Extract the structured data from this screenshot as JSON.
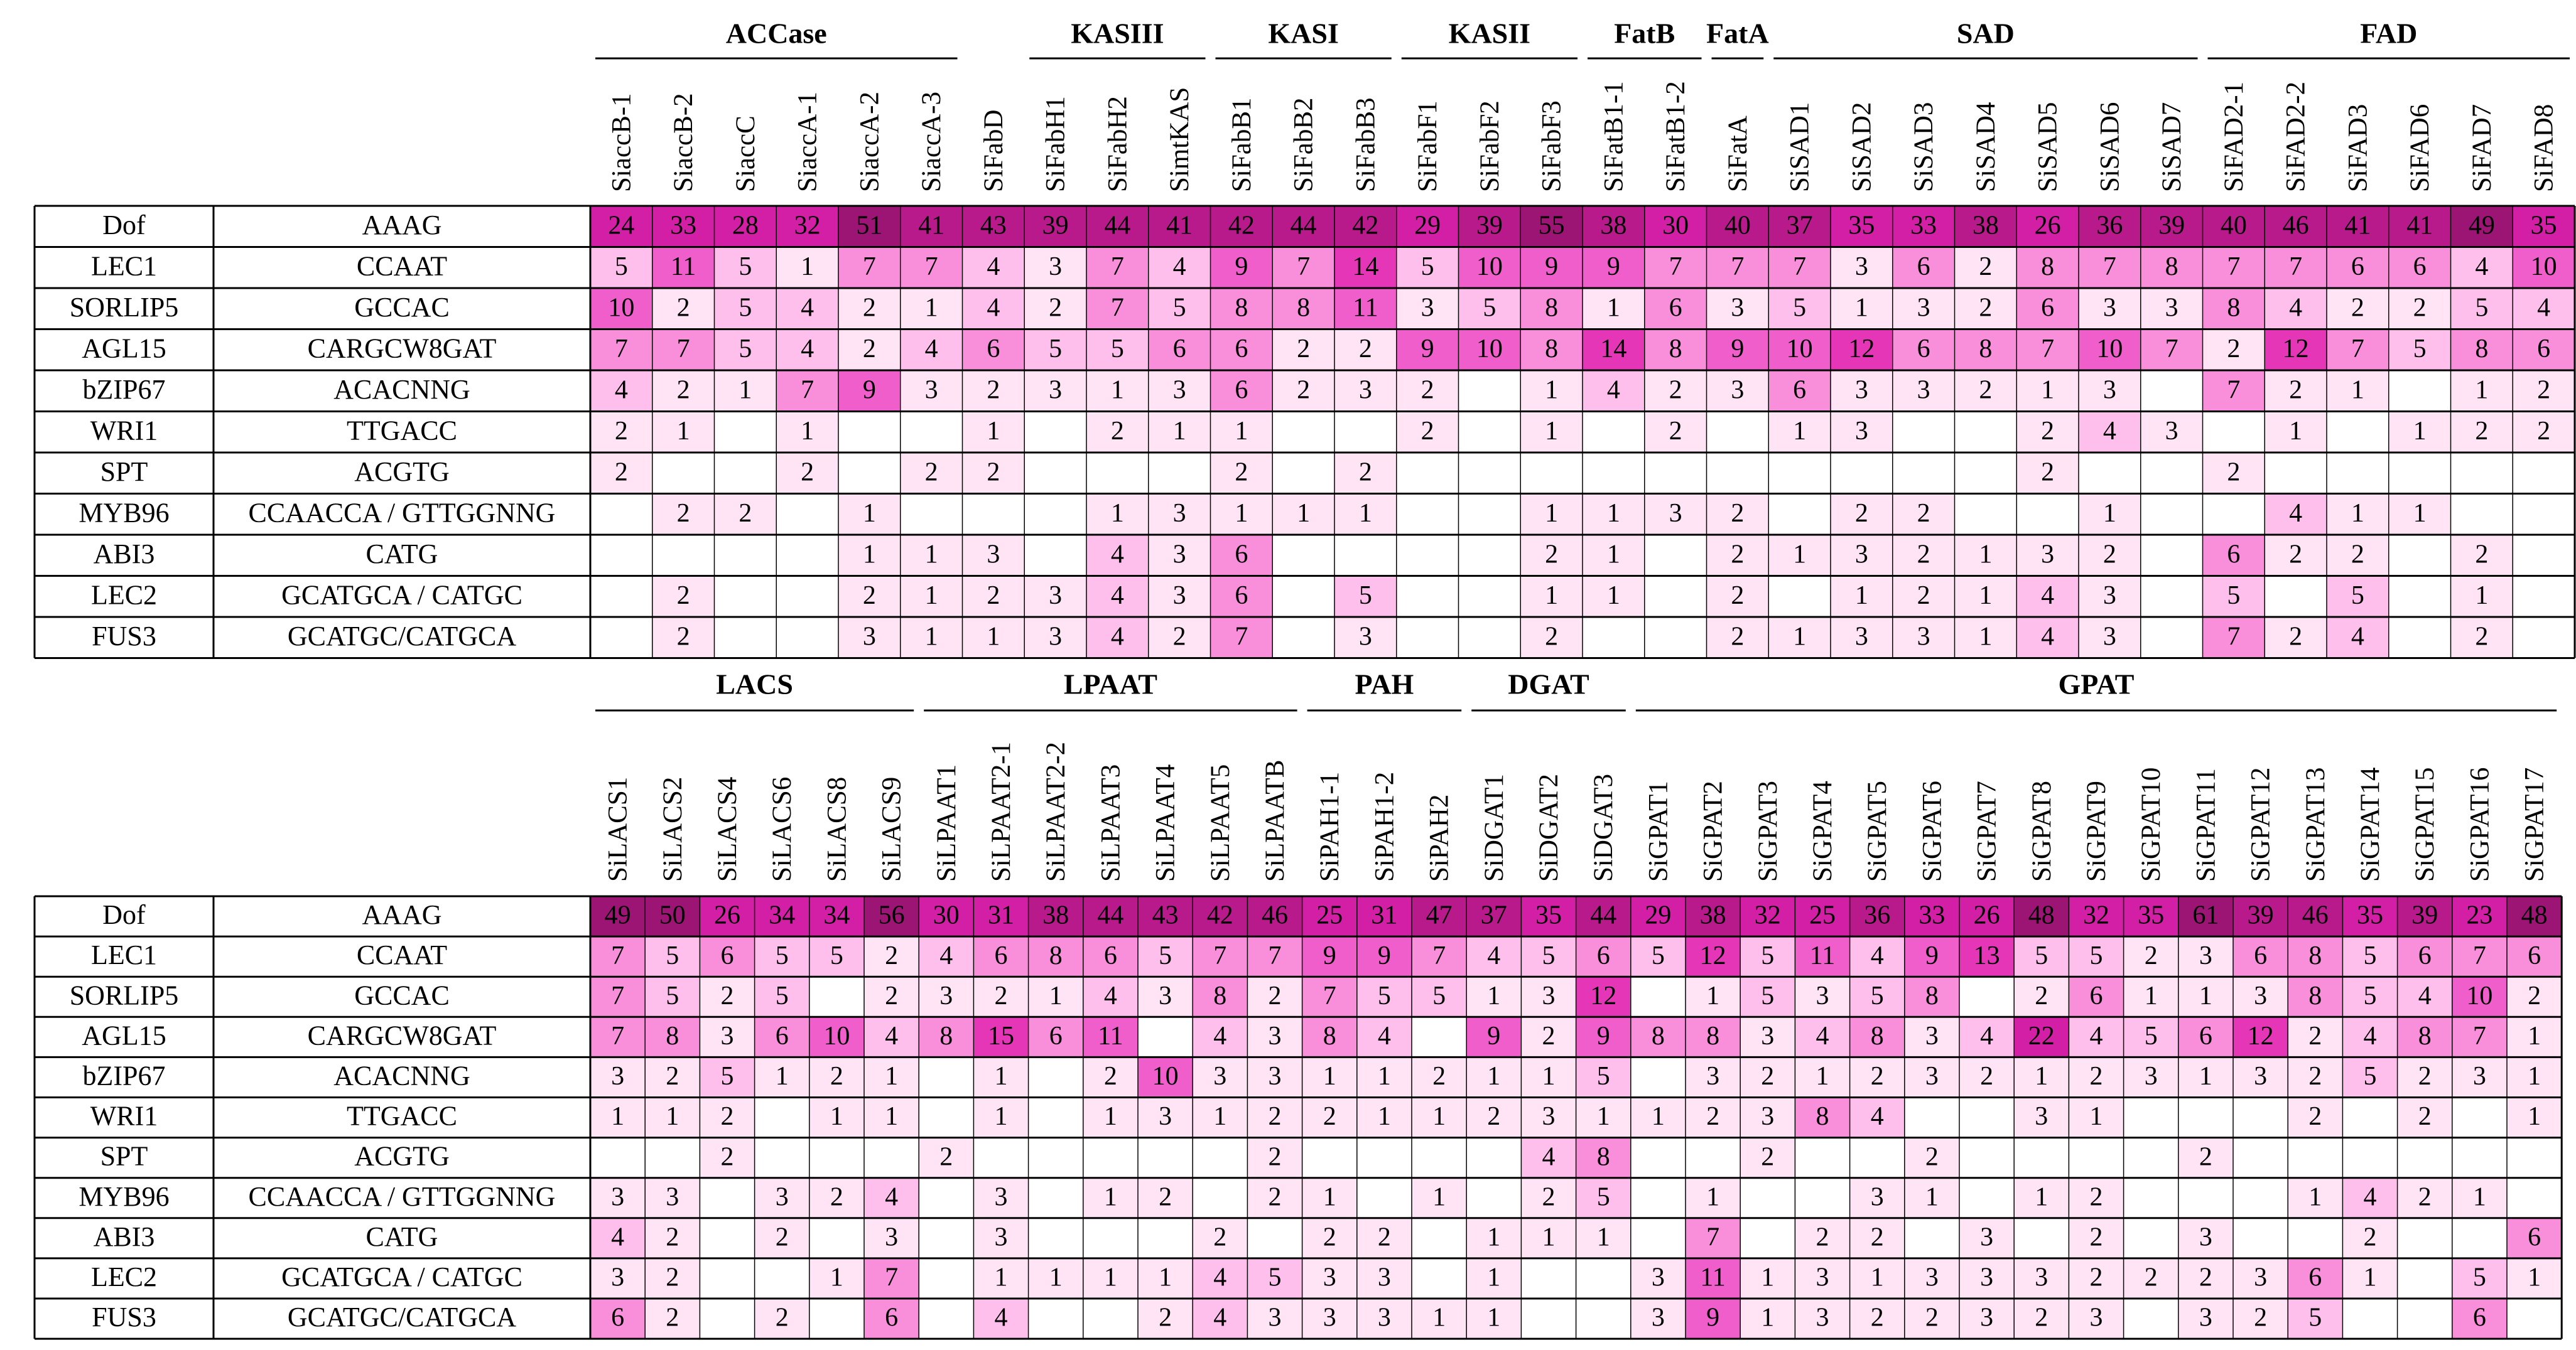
{
  "chart_data": [
    {
      "type": "heatmap",
      "title": "",
      "row_labels": [
        "Dof",
        "LEC1",
        "SORLIP5",
        "AGL15",
        "bZIP67",
        "WRI1",
        "SPT",
        "MYB96",
        "ABI3",
        "LEC2",
        "FUS3"
      ],
      "row_motifs": [
        "AAAG",
        "CCAAT",
        "GCCAC",
        "CARGCW8GAT",
        "ACACNNG",
        "TTGACC",
        "ACGTG",
        "CCAACCA / GTTGGNNG",
        "CATG",
        "GCATGCA / CATGC",
        "GCATGC/CATGCA"
      ],
      "groups": [
        {
          "name": "ACCase",
          "genes": [
            "SiaccB-1",
            "SiaccB-2",
            "SiaccC",
            "SiaccA-1",
            "SiaccA-2",
            "SiaccA-3"
          ]
        },
        {
          "name": "",
          "genes": [
            "SiFabD"
          ]
        },
        {
          "name": "KASIII",
          "genes": [
            "SiFabH1",
            "SiFabH2",
            "SimtKAS"
          ]
        },
        {
          "name": "KASI",
          "genes": [
            "SiFabB1",
            "SiFabB2",
            "SiFabB3"
          ]
        },
        {
          "name": "KASII",
          "genes": [
            "SiFabF1",
            "SiFabF2",
            "SiFabF3"
          ]
        },
        {
          "name": "FatB",
          "genes": [
            "SiFatB1-1",
            "SiFatB1-2"
          ]
        },
        {
          "name": "FatA",
          "genes": [
            "SiFatA"
          ]
        },
        {
          "name": "SAD",
          "genes": [
            "SiSAD1",
            "SiSAD2",
            "SiSAD3",
            "SiSAD4",
            "SiSAD5",
            "SiSAD6",
            "SiSAD7"
          ]
        },
        {
          "name": "FAD",
          "genes": [
            "SiFAD2-1",
            "SiFAD2-2",
            "SiFAD3",
            "SiFAD6",
            "SiFAD7",
            "SiFAD8"
          ]
        }
      ],
      "values": [
        [
          24,
          33,
          28,
          32,
          51,
          41,
          43,
          39,
          44,
          41,
          42,
          44,
          42,
          29,
          39,
          55,
          38,
          30,
          40,
          37,
          35,
          33,
          38,
          26,
          36,
          39,
          40,
          46,
          41,
          41,
          49,
          35
        ],
        [
          5,
          11,
          5,
          1,
          7,
          7,
          4,
          3,
          7,
          4,
          9,
          7,
          14,
          5,
          10,
          9,
          9,
          7,
          7,
          7,
          3,
          6,
          2,
          8,
          7,
          8,
          7,
          7,
          6,
          6,
          4,
          10
        ],
        [
          10,
          2,
          5,
          4,
          2,
          1,
          4,
          2,
          7,
          5,
          8,
          8,
          11,
          3,
          5,
          8,
          1,
          6,
          3,
          5,
          1,
          3,
          2,
          6,
          3,
          3,
          8,
          4,
          2,
          2,
          5,
          4
        ],
        [
          7,
          7,
          5,
          4,
          2,
          4,
          6,
          5,
          5,
          6,
          6,
          2,
          2,
          9,
          10,
          8,
          14,
          8,
          9,
          10,
          12,
          6,
          8,
          7,
          10,
          7,
          2,
          12,
          7,
          5,
          8,
          6
        ],
        [
          4,
          2,
          1,
          7,
          9,
          3,
          2,
          3,
          1,
          3,
          6,
          2,
          3,
          2,
          null,
          1,
          4,
          2,
          3,
          6,
          3,
          3,
          2,
          1,
          3,
          null,
          7,
          2,
          1,
          null,
          1,
          2
        ],
        [
          2,
          1,
          null,
          1,
          null,
          null,
          1,
          null,
          2,
          1,
          1,
          null,
          null,
          2,
          null,
          1,
          null,
          2,
          null,
          1,
          3,
          null,
          null,
          2,
          4,
          3,
          null,
          1,
          null,
          1,
          2,
          2
        ],
        [
          2,
          null,
          null,
          2,
          null,
          2,
          2,
          null,
          null,
          null,
          2,
          null,
          2,
          null,
          null,
          null,
          null,
          null,
          null,
          null,
          null,
          null,
          null,
          2,
          null,
          null,
          2,
          null,
          null,
          null,
          null,
          null
        ],
        [
          null,
          2,
          2,
          null,
          1,
          null,
          null,
          null,
          1,
          3,
          1,
          1,
          1,
          null,
          null,
          1,
          1,
          3,
          2,
          null,
          2,
          2,
          null,
          null,
          1,
          null,
          null,
          4,
          1,
          1,
          null,
          null
        ],
        [
          null,
          null,
          null,
          null,
          1,
          1,
          3,
          null,
          4,
          3,
          6,
          null,
          null,
          null,
          null,
          2,
          1,
          null,
          2,
          1,
          3,
          2,
          1,
          3,
          2,
          null,
          6,
          2,
          2,
          null,
          2,
          null
        ],
        [
          null,
          2,
          null,
          null,
          2,
          1,
          2,
          3,
          4,
          3,
          6,
          null,
          5,
          null,
          null,
          1,
          1,
          null,
          2,
          null,
          1,
          2,
          1,
          4,
          3,
          null,
          5,
          null,
          5,
          null,
          1,
          null
        ],
        [
          null,
          2,
          null,
          null,
          3,
          1,
          1,
          3,
          4,
          2,
          7,
          null,
          3,
          null,
          null,
          2,
          null,
          null,
          2,
          1,
          3,
          3,
          1,
          4,
          3,
          null,
          7,
          2,
          4,
          null,
          2,
          null
        ]
      ]
    },
    {
      "type": "heatmap",
      "title": "",
      "row_labels": [
        "Dof",
        "LEC1",
        "SORLIP5",
        "AGL15",
        "bZIP67",
        "WRI1",
        "SPT",
        "MYB96",
        "ABI3",
        "LEC2",
        "FUS3"
      ],
      "row_motifs": [
        "AAAG",
        "CCAAT",
        "GCCAC",
        "CARGCW8GAT",
        "ACACNNG",
        "TTGACC",
        "ACGTG",
        "CCAACCA / GTTGGNNG",
        "CATG",
        "GCATGCA / CATGC",
        "GCATGC/CATGCA"
      ],
      "groups": [
        {
          "name": "LACS",
          "genes": [
            "SiLACS1",
            "SiLACS2",
            "SiLACS4",
            "SiLACS6",
            "SiLACS8",
            "SiLACS9"
          ]
        },
        {
          "name": "LPAAT",
          "genes": [
            "SiLPAAT1",
            "SiLPAAT2-1",
            "SiLPAAT2-2",
            "SiLPAAT3",
            "SiLPAAT4",
            "SiLPAAT5",
            "SiLPAATB"
          ]
        },
        {
          "name": "PAH",
          "genes": [
            "SiPAH1-1",
            "SiPAH1-2",
            "SiPAH2"
          ]
        },
        {
          "name": "DGAT",
          "genes": [
            "SiDGAT1",
            "SiDGAT2",
            "SiDGAT3"
          ]
        },
        {
          "name": "GPAT",
          "genes": [
            "SiGPAT1",
            "SiGPAT2",
            "SiGPAT3",
            "SiGPAT4",
            "SiGPAT5",
            "SiGPAT6",
            "SiGPAT7",
            "SiGPAT8",
            "SiGPAT9",
            "SiGPAT10",
            "SiGPAT11",
            "SiGPAT12",
            "SiGPAT13",
            "SiGPAT14",
            "SiGPAT15",
            "SiGPAT16",
            "SiGPAT17"
          ]
        }
      ],
      "values": [
        [
          49,
          50,
          26,
          34,
          34,
          56,
          30,
          31,
          38,
          44,
          43,
          42,
          46,
          25,
          31,
          47,
          37,
          35,
          44,
          29,
          38,
          32,
          25,
          36,
          33,
          26,
          48,
          32,
          35,
          61,
          39,
          46,
          35,
          39,
          23,
          48
        ],
        [
          7,
          5,
          6,
          5,
          5,
          2,
          4,
          6,
          8,
          6,
          5,
          7,
          7,
          9,
          9,
          7,
          4,
          5,
          6,
          5,
          12,
          5,
          11,
          4,
          9,
          13,
          5,
          5,
          2,
          3,
          6,
          8,
          5,
          6,
          7,
          6
        ],
        [
          7,
          5,
          2,
          5,
          null,
          2,
          3,
          2,
          1,
          4,
          3,
          8,
          2,
          7,
          5,
          5,
          1,
          3,
          12,
          null,
          1,
          5,
          3,
          5,
          8,
          null,
          2,
          6,
          1,
          1,
          3,
          8,
          5,
          4,
          10,
          2
        ],
        [
          7,
          8,
          3,
          6,
          10,
          4,
          8,
          15,
          6,
          11,
          null,
          4,
          3,
          8,
          4,
          null,
          9,
          2,
          9,
          8,
          8,
          3,
          4,
          8,
          3,
          4,
          22,
          4,
          5,
          6,
          12,
          2,
          4,
          8,
          7,
          1
        ],
        [
          3,
          2,
          5,
          1,
          2,
          1,
          null,
          1,
          null,
          2,
          10,
          3,
          3,
          1,
          1,
          2,
          1,
          1,
          5,
          null,
          3,
          2,
          1,
          2,
          3,
          2,
          1,
          2,
          3,
          1,
          3,
          2,
          5,
          2,
          3,
          1
        ],
        [
          1,
          1,
          2,
          null,
          1,
          1,
          null,
          1,
          null,
          1,
          3,
          1,
          2,
          2,
          1,
          1,
          2,
          3,
          1,
          1,
          2,
          3,
          8,
          4,
          null,
          null,
          3,
          1,
          null,
          null,
          null,
          2,
          null,
          2,
          null,
          1
        ],
        [
          null,
          null,
          2,
          null,
          null,
          null,
          2,
          null,
          null,
          null,
          null,
          null,
          2,
          null,
          null,
          null,
          null,
          4,
          8,
          null,
          null,
          2,
          null,
          null,
          2,
          null,
          null,
          null,
          null,
          2,
          null,
          null,
          null,
          null,
          null,
          null
        ],
        [
          3,
          3,
          null,
          3,
          2,
          4,
          null,
          3,
          null,
          1,
          2,
          null,
          2,
          1,
          null,
          1,
          null,
          2,
          5,
          null,
          1,
          null,
          null,
          3,
          1,
          null,
          1,
          2,
          null,
          null,
          null,
          1,
          4,
          2,
          1,
          null
        ],
        [
          4,
          2,
          null,
          2,
          null,
          3,
          null,
          3,
          null,
          null,
          null,
          2,
          null,
          2,
          2,
          null,
          1,
          1,
          1,
          null,
          7,
          null,
          2,
          2,
          null,
          3,
          null,
          2,
          null,
          3,
          null,
          null,
          2,
          null,
          null,
          6
        ],
        [
          3,
          2,
          null,
          null,
          1,
          7,
          null,
          1,
          1,
          1,
          1,
          4,
          5,
          3,
          3,
          null,
          1,
          null,
          null,
          3,
          11,
          1,
          3,
          1,
          3,
          3,
          3,
          2,
          2,
          2,
          3,
          6,
          1,
          null,
          5,
          1
        ],
        [
          6,
          2,
          null,
          2,
          null,
          6,
          null,
          4,
          null,
          null,
          2,
          4,
          3,
          3,
          3,
          1,
          1,
          null,
          null,
          3,
          9,
          1,
          3,
          2,
          2,
          3,
          2,
          3,
          null,
          3,
          2,
          5,
          null,
          null,
          6,
          null
        ]
      ]
    }
  ],
  "colors": {
    "scale": [
      "#ffe4f6",
      "#ffbfec",
      "#f98fdb",
      "#ef5ecb",
      "#e636b8",
      "#d31fa6",
      "#b81a8b",
      "#9c1574"
    ],
    "value_text": "#000000",
    "high_value_text": "#ffffff",
    "grid": "#000000",
    "empty_cell": "#ffffff"
  }
}
